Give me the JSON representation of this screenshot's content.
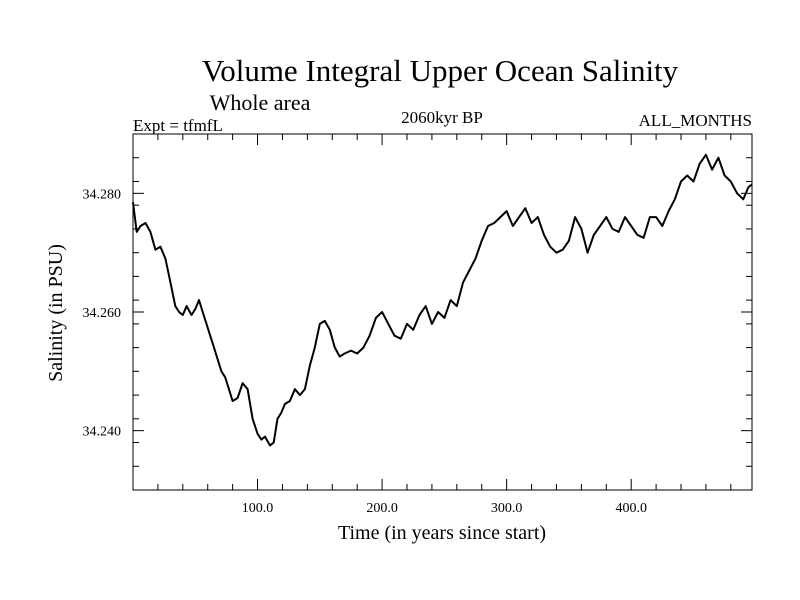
{
  "chart_data": {
    "type": "line",
    "title": "Volume Integral Upper Ocean Salinity",
    "subtitle": "Whole area",
    "experiment": "Expt = tfmfL",
    "period": "2060kyr BP",
    "season": "ALL_MONTHS",
    "xlabel": "Time (in years since start)",
    "ylabel": "Salinity (in PSU)",
    "xlim": [
      0,
      497
    ],
    "ylim": [
      34.23,
      34.29
    ],
    "xticks_major": [
      100,
      200,
      300,
      400
    ],
    "xtick_labels": [
      "100.0",
      "200.0",
      "300.0",
      "400.0"
    ],
    "xtick_minor_step": 20,
    "yticks_major": [
      34.24,
      34.26,
      34.28
    ],
    "ytick_labels": [
      "34.240",
      "34.260",
      "34.280"
    ],
    "ytick_minor_step": 0.004,
    "series": [
      {
        "name": "Salinity",
        "color": "#000000",
        "x": [
          0,
          3,
          6,
          10,
          14,
          18,
          22,
          26,
          30,
          34,
          37,
          40,
          43,
          47,
          50,
          53,
          56,
          59,
          62,
          65,
          68,
          71,
          74,
          77,
          80,
          84,
          88,
          92,
          96,
          100,
          103,
          106,
          110,
          113,
          116,
          119,
          122,
          126,
          130,
          134,
          138,
          142,
          146,
          150,
          154,
          158,
          162,
          166,
          170,
          175,
          180,
          185,
          190,
          195,
          200,
          205,
          210,
          215,
          220,
          225,
          230,
          235,
          240,
          245,
          250,
          255,
          260,
          265,
          270,
          275,
          280,
          285,
          290,
          295,
          300,
          305,
          310,
          315,
          320,
          325,
          330,
          335,
          340,
          345,
          350,
          355,
          360,
          365,
          370,
          375,
          380,
          385,
          390,
          395,
          400,
          405,
          410,
          415,
          420,
          425,
          430,
          435,
          440,
          445,
          450,
          455,
          460,
          465,
          470,
          475,
          480,
          485,
          490,
          494,
          497
        ],
        "values": [
          34.2785,
          34.2735,
          34.2745,
          34.275,
          34.2735,
          34.2705,
          34.271,
          34.269,
          34.265,
          34.261,
          34.26,
          34.2595,
          34.261,
          34.2595,
          34.2605,
          34.262,
          34.26,
          34.258,
          34.256,
          34.254,
          34.252,
          34.25,
          34.249,
          34.247,
          34.245,
          34.2455,
          34.248,
          34.247,
          34.242,
          34.2395,
          34.2385,
          34.239,
          34.2375,
          34.238,
          34.242,
          34.243,
          34.2445,
          34.245,
          34.247,
          34.246,
          34.247,
          34.251,
          34.254,
          34.258,
          34.2585,
          34.257,
          34.254,
          34.2525,
          34.253,
          34.2535,
          34.253,
          34.254,
          34.256,
          34.259,
          34.26,
          34.258,
          34.256,
          34.2555,
          34.258,
          34.257,
          34.2595,
          34.261,
          34.258,
          34.26,
          34.259,
          34.262,
          34.261,
          34.265,
          34.267,
          34.269,
          34.272,
          34.2745,
          34.275,
          34.276,
          34.277,
          34.2745,
          34.276,
          34.2775,
          34.275,
          34.276,
          34.273,
          34.271,
          34.27,
          34.2705,
          34.272,
          34.276,
          34.274,
          34.27,
          34.273,
          34.2745,
          34.276,
          34.274,
          34.2735,
          34.276,
          34.2745,
          34.273,
          34.2725,
          34.276,
          34.276,
          34.2745,
          34.277,
          34.279,
          34.282,
          34.283,
          34.282,
          34.285,
          34.2865,
          34.284,
          34.286,
          34.283,
          34.282,
          34.28,
          34.279,
          34.281,
          34.2815
        ]
      }
    ]
  }
}
